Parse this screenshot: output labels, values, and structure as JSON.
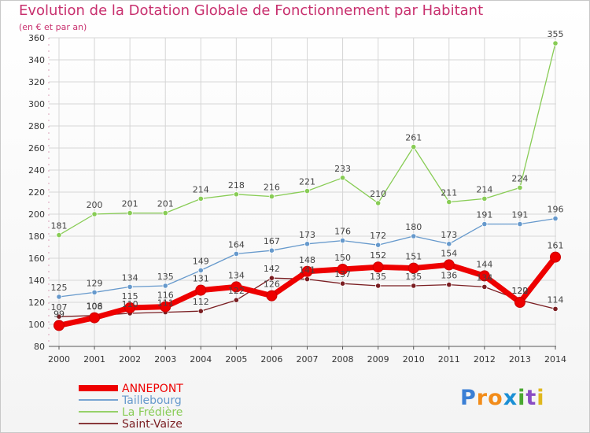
{
  "chart_data": {
    "type": "line",
    "title": "Evolution de la Dotation Globale de Fonctionnement par Habitant",
    "subtitle": "(en € et par an)",
    "xlabel": "",
    "ylabel": "",
    "ylim": [
      80,
      360
    ],
    "yticks": [
      80,
      100,
      120,
      140,
      160,
      180,
      200,
      220,
      240,
      260,
      280,
      300,
      320,
      340,
      360
    ],
    "grid": true,
    "legend_position": "bottom-left",
    "categories": [
      "2000",
      "2001",
      "2002",
      "2003",
      "2004",
      "2005",
      "2006",
      "2007",
      "2008",
      "2009",
      "2010",
      "2011",
      "2012",
      "2013",
      "2014"
    ],
    "series": [
      {
        "name": "Saint-Vaize",
        "color": "#7a1e22",
        "values": [
          107,
          108,
          110,
          111,
          112,
          122,
          142,
          141,
          137,
          135,
          135,
          136,
          134,
          122,
          114
        ],
        "labels": [
          "107",
          "108",
          "110",
          "111",
          "112",
          "122",
          "142",
          "141",
          "137",
          "135",
          "135",
          "136",
          "134",
          "122",
          "114"
        ]
      },
      {
        "name": "La Frédière",
        "color": "#88cc55",
        "values": [
          181,
          200,
          201,
          201,
          214,
          218,
          216,
          221,
          233,
          210,
          261,
          211,
          214,
          224,
          355
        ],
        "labels": [
          "181",
          "200",
          "201",
          "201",
          "214",
          "218",
          "216",
          "221",
          "233",
          "210",
          "261",
          "211",
          "214",
          "224",
          "355"
        ]
      },
      {
        "name": "Taillebourg",
        "color": "#6699cc",
        "values": [
          125,
          129,
          134,
          135,
          149,
          164,
          167,
          173,
          176,
          172,
          180,
          173,
          191,
          191,
          196
        ],
        "labels": [
          "125",
          "129",
          "134",
          "135",
          "149",
          "164",
          "167",
          "173",
          "176",
          "172",
          "180",
          "173",
          "191",
          "191",
          "196"
        ]
      },
      {
        "name": "ANNEPONT",
        "color": "#ee0000",
        "values": [
          99,
          106,
          115,
          116,
          131,
          134,
          126,
          148,
          150,
          152,
          151,
          154,
          144,
          120,
          161
        ],
        "labels": [
          "99",
          "106",
          "115",
          "116",
          "131",
          "134",
          "126",
          "148",
          "150",
          "152",
          "151",
          "154",
          "144",
          "120",
          "161"
        ]
      }
    ],
    "legend": [
      {
        "name": "ANNEPONT",
        "color": "#ee0000"
      },
      {
        "name": "Taillebourg",
        "color": "#6699cc"
      },
      {
        "name": "La Frédière",
        "color": "#88cc55"
      },
      {
        "name": "Saint-Vaize",
        "color": "#7a1e22"
      }
    ]
  },
  "logo": {
    "text": "Proxiti",
    "letters": [
      "P",
      "r",
      "o",
      "x",
      "i",
      "t",
      "i"
    ],
    "colors": [
      "#3a7fd5",
      "#f28c1a",
      "#f28c1a",
      "#1a8fd5",
      "#4aa832",
      "#8a4cc4",
      "#e0b81e"
    ]
  }
}
